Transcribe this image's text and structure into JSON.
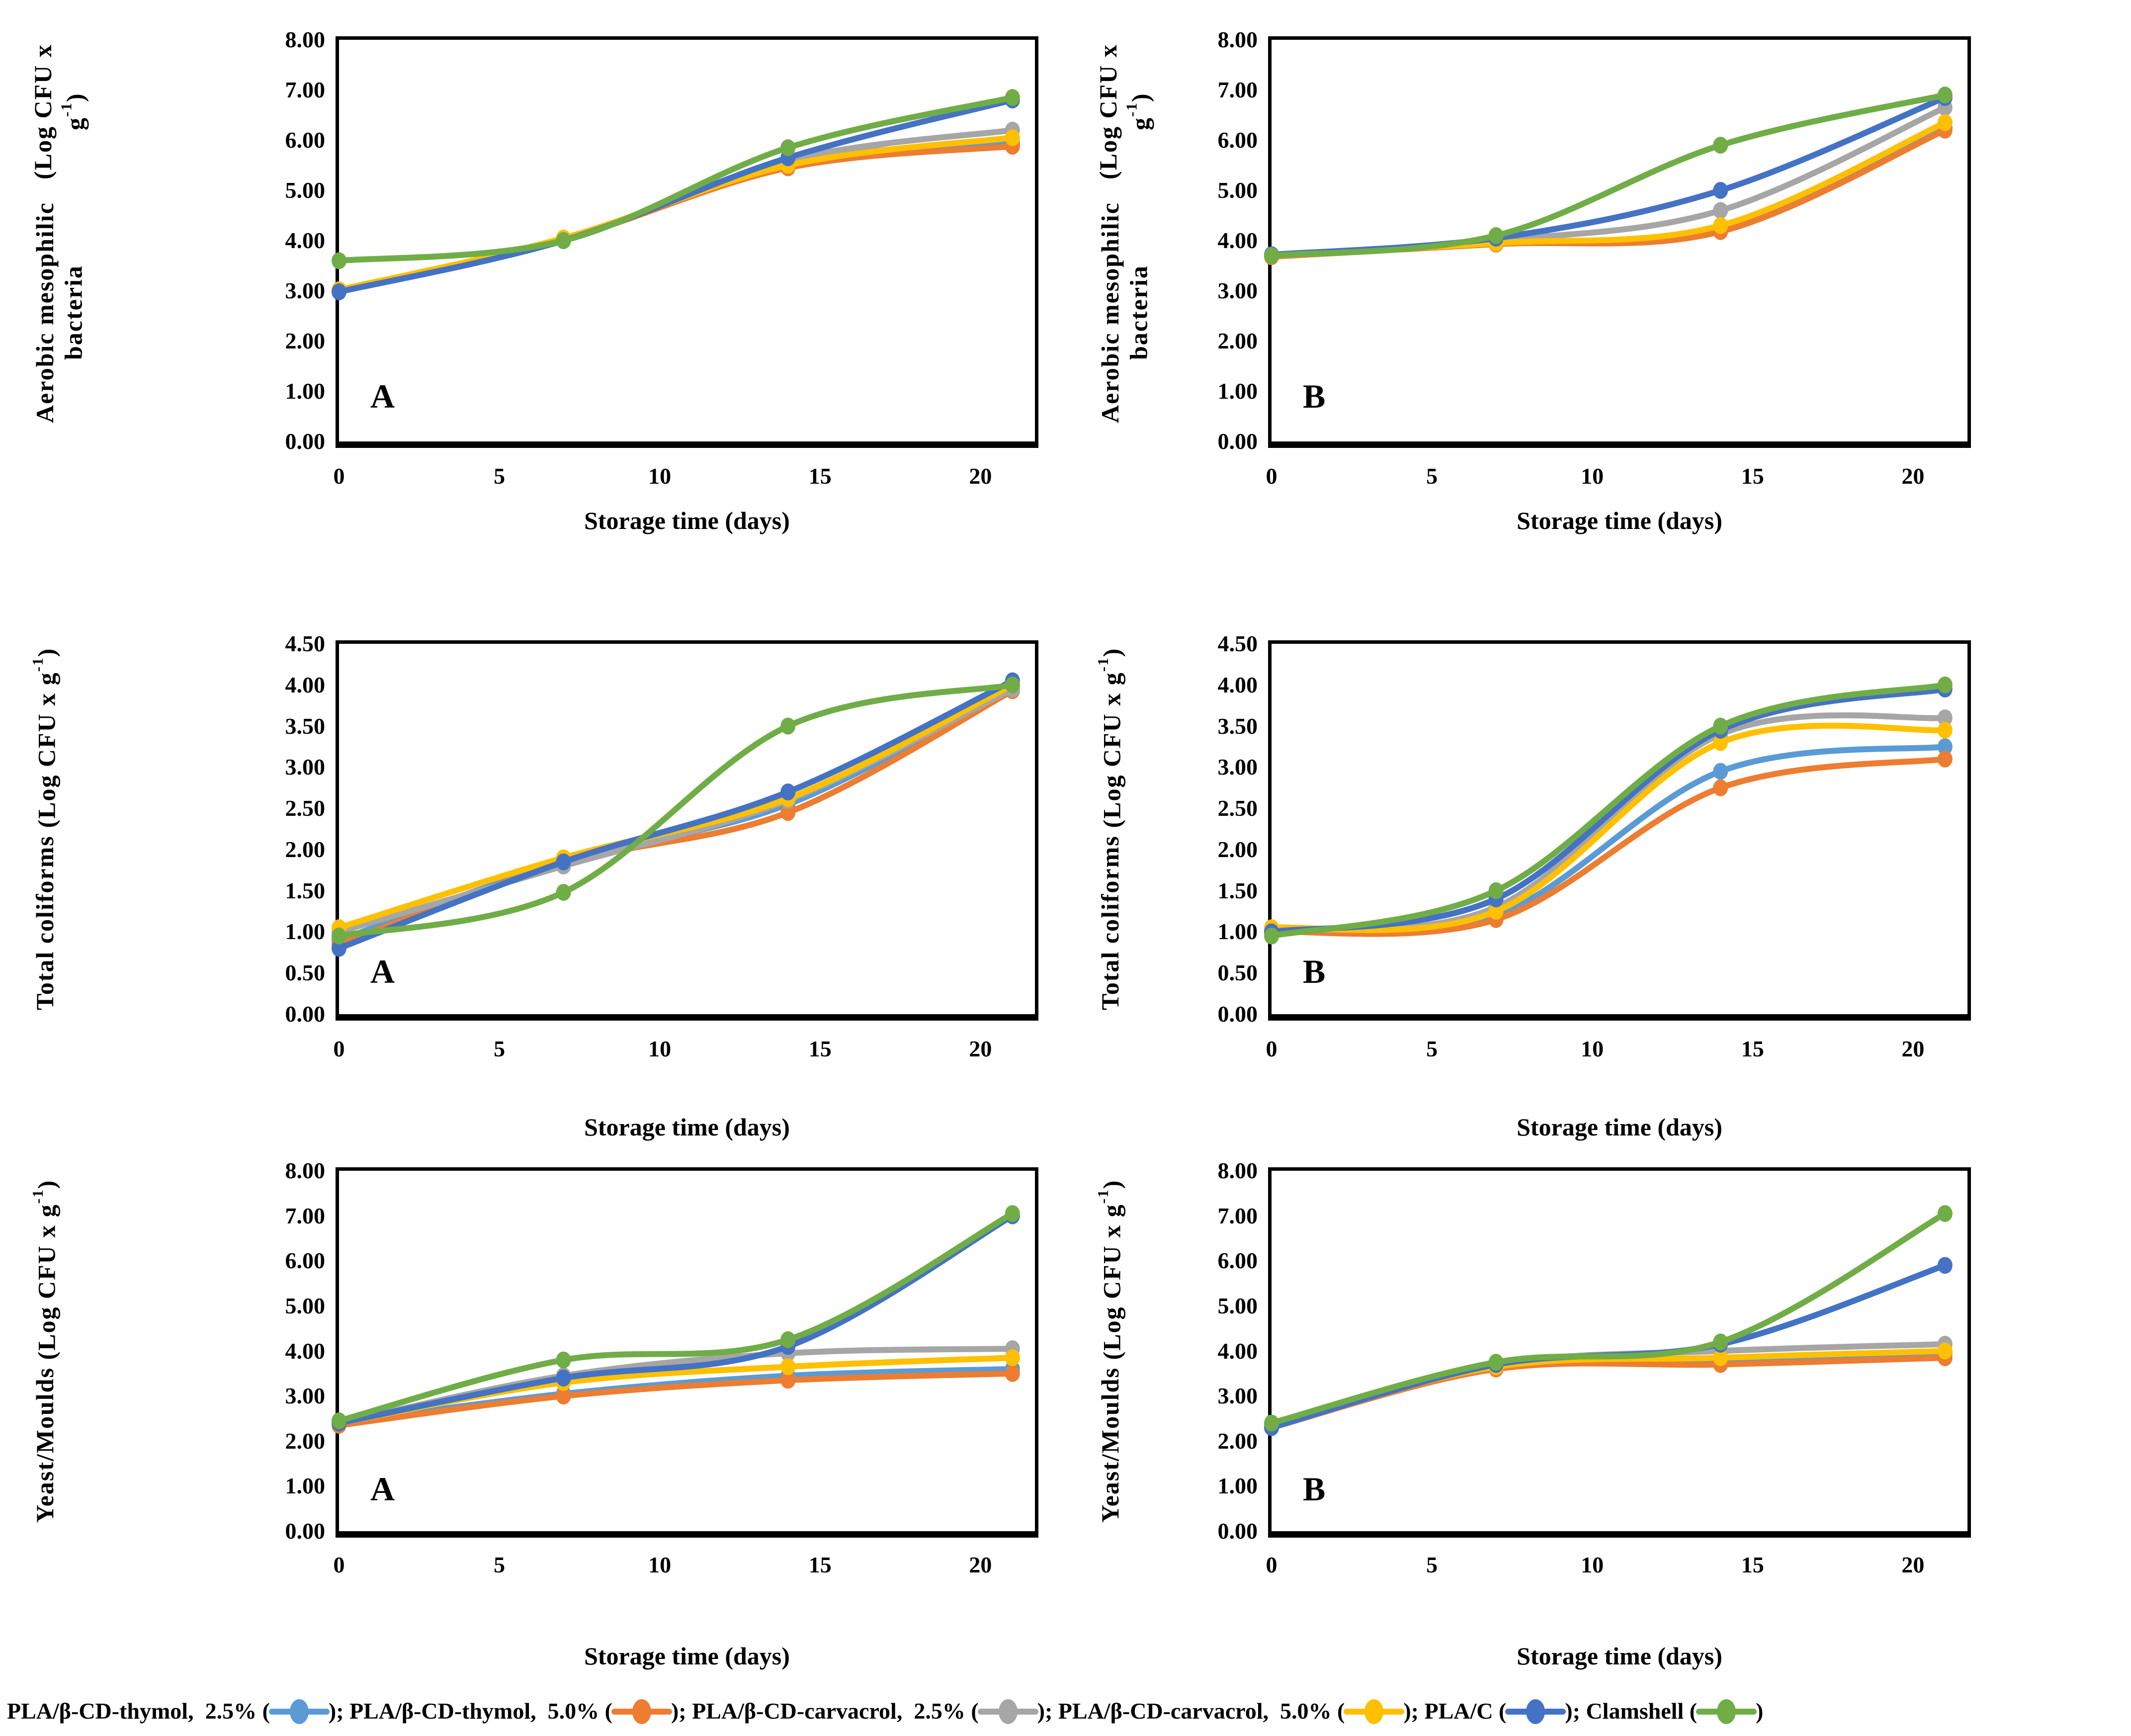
{
  "figure_caption_xlabel": "Storage time (days)",
  "axis_unit": {
    "prefix": "(Log CFU x g",
    "sup": "-1",
    "suffix": ")"
  },
  "colors": {
    "thymol_25": "#5B9BD5",
    "thymol_50": "#ED7D31",
    "carvacrol_25": "#A6A6A6",
    "carvacrol_50": "#FFC000",
    "pla_c": "#4472C4",
    "clamshell": "#70AD47"
  },
  "series_labels": {
    "thymol_25": "PLA/β-CD-thymol, 2.5%",
    "thymol_50": "PLA/β-CD-thymol, 5.0%",
    "carvacrol_25": "PLA/β-CD-carvacrol, 2.5%",
    "carvacrol_50": "PLA/β-CD-carvacrol, 5.0%",
    "pla_c": "PLA/C",
    "clamshell": "Clamshell"
  },
  "legend": {
    "items": [
      {
        "text": "PLA/β-CD-thymol,  2.5% (",
        "key": "thymol_25",
        "after": "); "
      },
      {
        "text": "PLA/β-CD-thymol,  5.0% (",
        "key": "thymol_50",
        "after": "); "
      },
      {
        "text": "PLA/β-CD-carvacrol,  2.5% (",
        "key": "carvacrol_25",
        "after": "); "
      },
      {
        "text": "PLA/β-CD-carvacrol,  5.0% (",
        "key": "carvacrol_50",
        "after": "); "
      },
      {
        "text": "PLA/C (",
        "key": "pla_c",
        "after": "); "
      },
      {
        "text": "Clamshell (",
        "key": "clamshell",
        "after": ")"
      }
    ]
  },
  "chart_data": [
    {
      "type": "line",
      "panel": "A",
      "ylabel": "Aerobic mesophilic bacteria",
      "two_line": true,
      "xlabel": "Storage time (days)",
      "ylim": [
        0,
        8
      ],
      "ystep": 1,
      "ytick_format": 2,
      "xticks": [
        0,
        5,
        10,
        15,
        20
      ],
      "xmax": 21.7,
      "x": [
        0,
        7,
        14,
        21
      ],
      "series": [
        {
          "key": "thymol_25",
          "values": [
            3.0,
            4.0,
            5.55,
            5.95
          ]
        },
        {
          "key": "thymol_50",
          "values": [
            3.0,
            4.02,
            5.45,
            5.88
          ]
        },
        {
          "key": "carvacrol_25",
          "values": [
            3.0,
            4.0,
            5.6,
            6.2
          ]
        },
        {
          "key": "carvacrol_50",
          "values": [
            3.02,
            4.05,
            5.5,
            6.05
          ]
        },
        {
          "key": "pla_c",
          "values": [
            2.98,
            4.0,
            5.65,
            6.8
          ]
        },
        {
          "key": "clamshell",
          "values": [
            3.6,
            4.0,
            5.85,
            6.85
          ]
        }
      ]
    },
    {
      "type": "line",
      "panel": "B",
      "ylabel": "Aerobic mesophilic bacteria",
      "two_line": true,
      "xlabel": "Storage time (days)",
      "ylim": [
        0,
        8
      ],
      "ystep": 1,
      "ytick_format": 2,
      "xticks": [
        0,
        5,
        10,
        15,
        20
      ],
      "xmax": 21.7,
      "x": [
        0,
        7,
        14,
        21
      ],
      "series": [
        {
          "key": "thymol_25",
          "values": [
            3.7,
            3.95,
            4.25,
            6.25
          ]
        },
        {
          "key": "thymol_50",
          "values": [
            3.68,
            3.93,
            4.18,
            6.2
          ]
        },
        {
          "key": "carvacrol_25",
          "values": [
            3.7,
            4.0,
            4.6,
            6.65
          ]
        },
        {
          "key": "carvacrol_50",
          "values": [
            3.7,
            3.95,
            4.3,
            6.35
          ]
        },
        {
          "key": "pla_c",
          "values": [
            3.72,
            4.05,
            5.0,
            6.85
          ]
        },
        {
          "key": "clamshell",
          "values": [
            3.7,
            4.1,
            5.9,
            6.9
          ]
        }
      ]
    },
    {
      "type": "line",
      "panel": "A",
      "ylabel": "Total coliforms",
      "two_line": false,
      "xlabel": "Storage time (days)",
      "ylim": [
        0,
        4.5
      ],
      "ystep": 0.5,
      "ytick_format": 2,
      "xticks": [
        0,
        5,
        10,
        15,
        20
      ],
      "xmax": 21.7,
      "x": [
        0,
        7,
        14,
        21
      ],
      "series": [
        {
          "key": "thymol_25",
          "values": [
            0.9,
            1.85,
            2.55,
            3.95
          ]
        },
        {
          "key": "thymol_50",
          "values": [
            0.85,
            1.83,
            2.45,
            3.93
          ]
        },
        {
          "key": "carvacrol_25",
          "values": [
            1.0,
            1.8,
            2.6,
            3.95
          ]
        },
        {
          "key": "carvacrol_50",
          "values": [
            1.05,
            1.9,
            2.62,
            4.0
          ]
        },
        {
          "key": "pla_c",
          "values": [
            0.8,
            1.85,
            2.7,
            4.05
          ]
        },
        {
          "key": "clamshell",
          "values": [
            0.95,
            1.48,
            3.5,
            4.0
          ]
        }
      ]
    },
    {
      "type": "line",
      "panel": "B",
      "ylabel": "Total coliforms",
      "two_line": false,
      "xlabel": "Storage time (days)",
      "ylim": [
        0,
        4.5
      ],
      "ystep": 0.5,
      "ytick_format": 2,
      "xticks": [
        0,
        5,
        10,
        15,
        20
      ],
      "xmax": 21.7,
      "x": [
        0,
        7,
        14,
        21
      ],
      "series": [
        {
          "key": "thymol_25",
          "values": [
            1.0,
            1.2,
            2.95,
            3.25
          ]
        },
        {
          "key": "thymol_50",
          "values": [
            1.0,
            1.15,
            2.75,
            3.1
          ]
        },
        {
          "key": "carvacrol_25",
          "values": [
            1.02,
            1.3,
            3.4,
            3.6
          ]
        },
        {
          "key": "carvacrol_50",
          "values": [
            1.05,
            1.25,
            3.3,
            3.45
          ]
        },
        {
          "key": "pla_c",
          "values": [
            1.0,
            1.4,
            3.45,
            3.95
          ]
        },
        {
          "key": "clamshell",
          "values": [
            0.95,
            1.5,
            3.5,
            4.0
          ]
        }
      ]
    },
    {
      "type": "line",
      "panel": "A",
      "ylabel": "Yeast/Moulds",
      "two_line": false,
      "xlabel": "Storage time (days)",
      "ylim": [
        0,
        8
      ],
      "ystep": 1,
      "ytick_format": 2,
      "xticks": [
        0,
        5,
        10,
        15,
        20
      ],
      "xmax": 21.7,
      "x": [
        0,
        7,
        14,
        21
      ],
      "series": [
        {
          "key": "thymol_25",
          "values": [
            2.4,
            3.05,
            3.45,
            3.6
          ]
        },
        {
          "key": "thymol_50",
          "values": [
            2.35,
            3.0,
            3.35,
            3.5
          ]
        },
        {
          "key": "carvacrol_25",
          "values": [
            2.4,
            3.45,
            3.95,
            4.05
          ]
        },
        {
          "key": "carvacrol_50",
          "values": [
            2.4,
            3.3,
            3.65,
            3.85
          ]
        },
        {
          "key": "pla_c",
          "values": [
            2.4,
            3.4,
            4.1,
            7.0
          ]
        },
        {
          "key": "clamshell",
          "values": [
            2.45,
            3.8,
            4.25,
            7.05
          ]
        }
      ]
    },
    {
      "type": "line",
      "panel": "B",
      "ylabel": "Yeast/Moulds",
      "two_line": false,
      "xlabel": "Storage time (days)",
      "ylim": [
        0,
        8
      ],
      "ystep": 1,
      "ytick_format": 2,
      "xticks": [
        0,
        5,
        10,
        15,
        20
      ],
      "xmax": 21.7,
      "x": [
        0,
        7,
        14,
        21
      ],
      "series": [
        {
          "key": "thymol_25",
          "values": [
            2.3,
            3.65,
            3.8,
            3.95
          ]
        },
        {
          "key": "thymol_50",
          "values": [
            2.3,
            3.6,
            3.7,
            3.85
          ]
        },
        {
          "key": "carvacrol_25",
          "values": [
            2.35,
            3.7,
            4.0,
            4.15
          ]
        },
        {
          "key": "carvacrol_50",
          "values": [
            2.35,
            3.65,
            3.85,
            4.0
          ]
        },
        {
          "key": "pla_c",
          "values": [
            2.3,
            3.7,
            4.15,
            5.9
          ]
        },
        {
          "key": "clamshell",
          "values": [
            2.4,
            3.75,
            4.2,
            7.05
          ]
        }
      ]
    }
  ]
}
